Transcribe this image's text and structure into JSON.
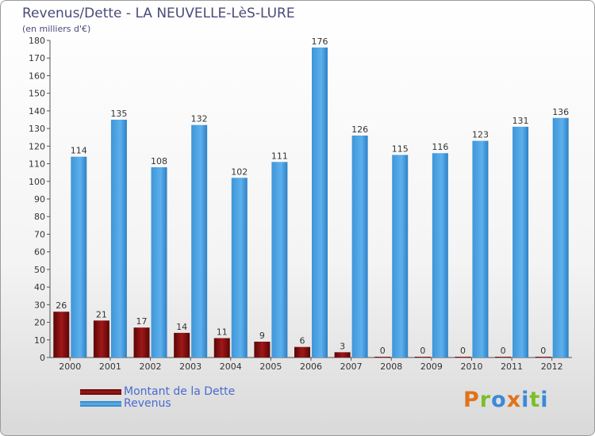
{
  "header": {
    "title": "Revenus/Dette - LA NEUVELLE-LèS-LURE",
    "subtitle": "(en milliers d'€)"
  },
  "legend": [
    {
      "label": "Montant de la Dette",
      "color": "#7a0d0d"
    },
    {
      "label": "Revenus",
      "color": "#4ba3e3"
    }
  ],
  "logo": {
    "text": "Proxiti",
    "colors": [
      "#e0731a",
      "#7bbf2a",
      "#3a8ad8",
      "#e0731a",
      "#3a8ad8",
      "#7bbf2a",
      "#3a8ad8"
    ]
  },
  "chart_data": {
    "type": "bar",
    "title": "Revenus/Dette - LA NEUVELLE-LèS-LURE",
    "subtitle": "(en milliers d'€)",
    "categories": [
      "2000",
      "2001",
      "2002",
      "2003",
      "2004",
      "2005",
      "2006",
      "2007",
      "2008",
      "2009",
      "2010",
      "2011",
      "2012"
    ],
    "series": [
      {
        "name": "Montant de la Dette",
        "color": "#7a0d0d",
        "values": [
          26,
          21,
          17,
          14,
          11,
          9,
          6,
          3,
          0,
          0,
          0,
          0,
          0
        ]
      },
      {
        "name": "Revenus",
        "color": "#4ba3e3",
        "values": [
          114,
          135,
          108,
          132,
          102,
          111,
          176,
          126,
          115,
          116,
          123,
          131,
          136
        ]
      }
    ],
    "ylim": [
      0,
      180
    ],
    "yticks": [
      0,
      10,
      20,
      30,
      40,
      50,
      60,
      70,
      80,
      90,
      100,
      110,
      120,
      130,
      140,
      150,
      160,
      170,
      180
    ],
    "grid": false,
    "legend_position": "bottom-left"
  }
}
